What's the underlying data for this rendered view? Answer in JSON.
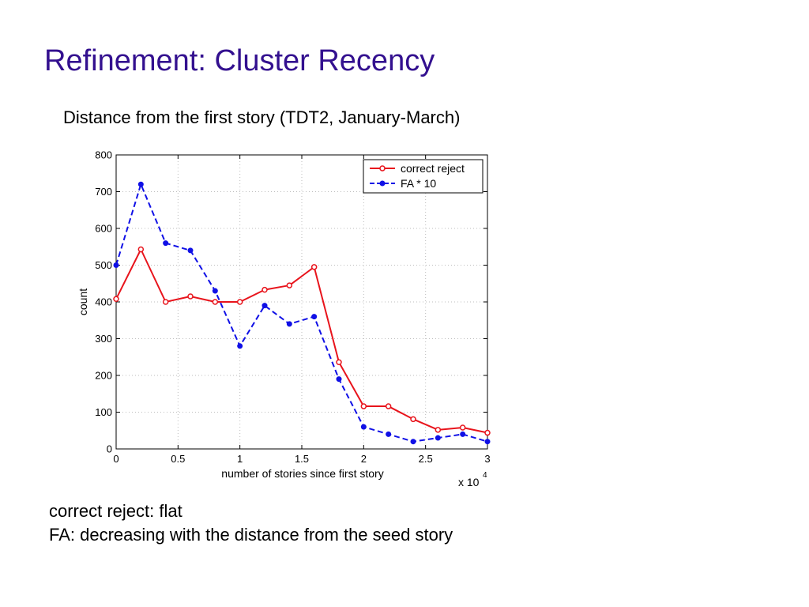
{
  "slide": {
    "title": "Refinement: Cluster Recency",
    "chart_caption": "Distance from the first story (TDT2, January-March)",
    "notes": [
      "correct reject: flat",
      "FA: decreasing with the distance from the seed story"
    ]
  },
  "colors": {
    "title": "#33108f",
    "correct_reject": "#e8141c",
    "fa": "#1010e6",
    "grid": "#bdbdbd"
  },
  "chart_data": {
    "type": "line",
    "title": "",
    "xlabel": "number of stories since first story",
    "ylabel": "count",
    "x_multiplier_label": {
      "base": "x 10",
      "exponent": "4"
    },
    "xlim": [
      0,
      3
    ],
    "ylim": [
      0,
      800
    ],
    "xticks": [
      0,
      0.5,
      1,
      1.5,
      2,
      2.5,
      3
    ],
    "xtick_labels": [
      "0",
      "0.5",
      "1",
      "1.5",
      "2",
      "2.5",
      "3"
    ],
    "yticks": [
      0,
      100,
      200,
      300,
      400,
      500,
      600,
      700,
      800
    ],
    "ytick_labels": [
      "0",
      "100",
      "200",
      "300",
      "400",
      "500",
      "600",
      "700",
      "800"
    ],
    "grid": true,
    "legend_position": "top-right",
    "x": [
      0,
      0.2,
      0.4,
      0.6,
      0.8,
      1.0,
      1.2,
      1.4,
      1.6,
      1.8,
      2.0,
      2.2,
      2.4,
      2.6,
      2.8,
      3.0
    ],
    "series": [
      {
        "name": "correct reject",
        "style": "solid",
        "marker": "circle",
        "values": [
          408,
          543,
          400,
          415,
          400,
          400,
          433,
          445,
          495,
          236,
          116,
          116,
          81,
          52,
          58,
          44
        ]
      },
      {
        "name": "FA * 10",
        "style": "dashed",
        "marker": "dot",
        "values": [
          500,
          720,
          560,
          540,
          430,
          280,
          390,
          340,
          360,
          190,
          60,
          40,
          20,
          30,
          40,
          20
        ]
      }
    ]
  }
}
